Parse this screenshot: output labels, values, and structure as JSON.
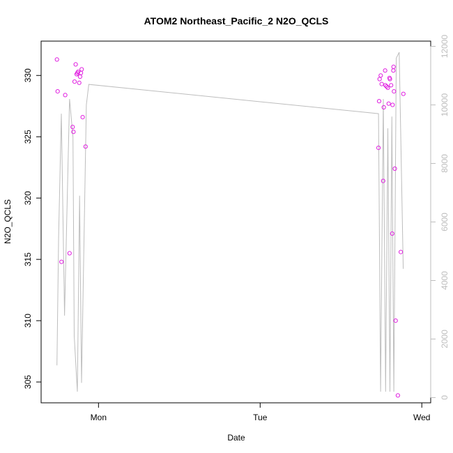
{
  "chart_data": {
    "type": "scatter",
    "title": "ATOM2 Northeast_Pacific_2 N2O_QCLS",
    "xlabel": "Date",
    "ylabel": "N2O_QCLS",
    "x_ticks": [
      "Mon",
      "Tue",
      "Wed"
    ],
    "y_ticks": [
      305,
      310,
      315,
      320,
      325,
      330
    ],
    "y2_ticks": [
      0,
      2000,
      4000,
      6000,
      8000,
      10000,
      12000
    ],
    "ylim": [
      303.3,
      332.8
    ],
    "y2lim": [
      -180,
      12180
    ],
    "x_unit": "days since Monday 00:00",
    "xlim": [
      -0.355,
      2.055
    ],
    "colors": {
      "points": "#e020e0",
      "altitude": "#bdbdbd"
    },
    "series": [
      {
        "type": "points",
        "points": [
          [
            -0.257,
            331.3
          ],
          [
            -0.253,
            328.7
          ],
          [
            -0.229,
            314.8
          ],
          [
            -0.206,
            328.4
          ],
          [
            -0.179,
            315.5
          ],
          [
            -0.16,
            325.8
          ],
          [
            -0.155,
            325.4
          ],
          [
            -0.148,
            329.5
          ],
          [
            -0.141,
            330.9
          ],
          [
            -0.135,
            330.1
          ],
          [
            -0.131,
            330.2
          ],
          [
            -0.126,
            330.3
          ],
          [
            -0.119,
            329.4
          ],
          [
            -0.114,
            329.9
          ],
          [
            -0.109,
            330.2
          ],
          [
            -0.104,
            330.5
          ],
          [
            -0.098,
            326.6
          ],
          [
            -0.08,
            324.2
          ],
          [
            1.732,
            324.1
          ],
          [
            1.736,
            327.9
          ],
          [
            1.739,
            329.7
          ],
          [
            1.746,
            330.0
          ],
          [
            1.752,
            329.3
          ],
          [
            1.761,
            321.4
          ],
          [
            1.765,
            327.4
          ],
          [
            1.773,
            330.4
          ],
          [
            1.775,
            329.2
          ],
          [
            1.782,
            329.1
          ],
          [
            1.79,
            329.0
          ],
          [
            1.795,
            327.7
          ],
          [
            1.8,
            329.8
          ],
          [
            1.803,
            329.7
          ],
          [
            1.81,
            329.2
          ],
          [
            1.817,
            317.1
          ],
          [
            1.819,
            327.6
          ],
          [
            1.824,
            330.4
          ],
          [
            1.825,
            330.7
          ],
          [
            1.828,
            328.7
          ],
          [
            1.833,
            322.4
          ],
          [
            1.838,
            310.0
          ],
          [
            1.852,
            303.9
          ],
          [
            1.87,
            315.6
          ],
          [
            1.886,
            328.5
          ]
        ]
      },
      {
        "type": "altitude",
        "points": [
          [
            -0.257,
            1100
          ],
          [
            -0.247,
            5500
          ],
          [
            -0.23,
            9700
          ],
          [
            -0.21,
            2800
          ],
          [
            -0.179,
            10200
          ],
          [
            -0.158,
            8900
          ],
          [
            -0.15,
            2100
          ],
          [
            -0.131,
            200
          ],
          [
            -0.117,
            6900
          ],
          [
            -0.105,
            500
          ],
          [
            -0.075,
            10000
          ],
          [
            -0.06,
            10700
          ],
          [
            1.732,
            9700
          ],
          [
            1.745,
            200
          ],
          [
            1.762,
            10200
          ],
          [
            1.776,
            200
          ],
          [
            1.79,
            9200
          ],
          [
            1.803,
            200
          ],
          [
            1.815,
            9600
          ],
          [
            1.827,
            200
          ],
          [
            1.842,
            11600
          ],
          [
            1.86,
            11800
          ],
          [
            1.885,
            4400
          ]
        ]
      }
    ]
  }
}
